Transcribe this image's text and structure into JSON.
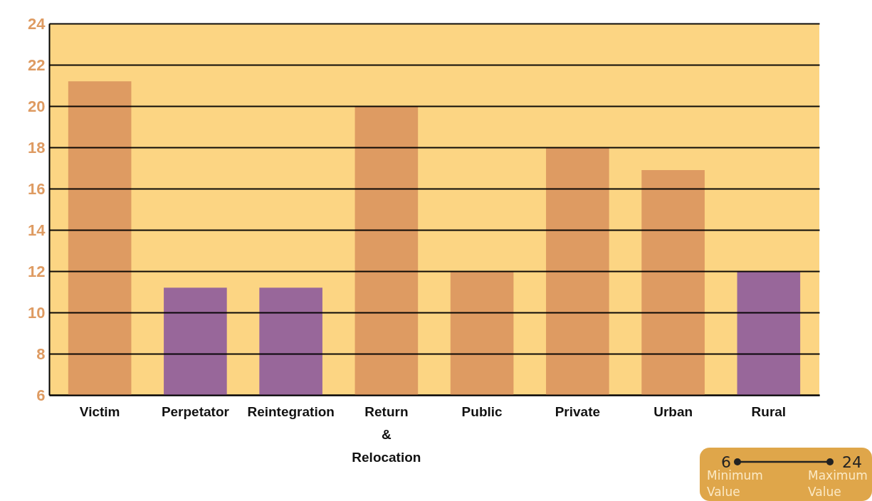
{
  "chart_data": {
    "type": "bar",
    "categories": [
      "Victim",
      "Perpetator",
      "Reintegration",
      "Return & Relocation",
      "Public",
      "Private",
      "Urban",
      "Rural"
    ],
    "values": [
      21.2,
      11.2,
      11.2,
      20,
      12,
      18,
      16.9,
      12
    ],
    "colors": [
      "#de9b62",
      "#98679a",
      "#98679a",
      "#de9b62",
      "#de9b62",
      "#de9b62",
      "#de9b62",
      "#98679a"
    ],
    "ylim": [
      6,
      24
    ],
    "yticks": [
      6,
      8,
      10,
      12,
      14,
      16,
      18,
      20,
      22,
      24
    ],
    "grid": "y",
    "annotations": [
      "6",
      "24",
      "Minimum Value",
      "Maximum Value"
    ]
  }
}
